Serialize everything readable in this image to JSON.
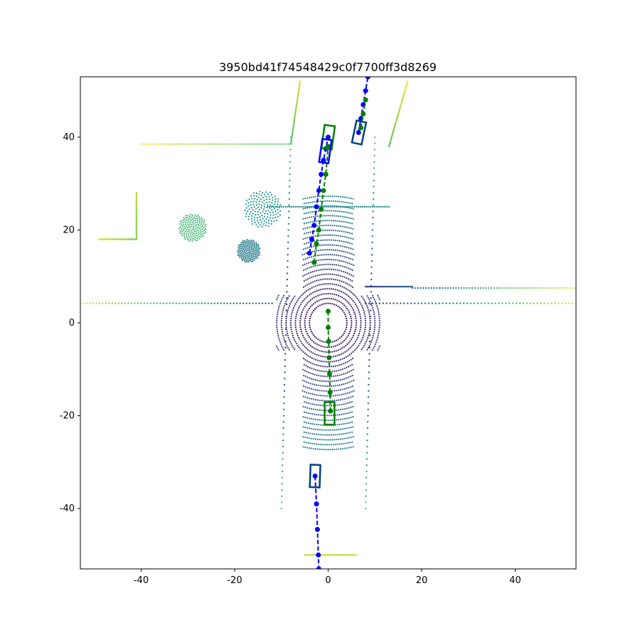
{
  "chart_data": {
    "type": "scatter",
    "title": "3950bd41f74548429c0f7700ff3d8269",
    "xlabel": "",
    "ylabel": "",
    "xlim": [
      -53,
      53
    ],
    "ylim": [
      -53,
      53
    ],
    "x_ticks": [
      -40,
      -20,
      0,
      20,
      40
    ],
    "y_ticks": [
      -40,
      -20,
      0,
      20,
      40
    ],
    "grid": false,
    "colors": {
      "near_points": "#440154",
      "mid_points": "#31688e",
      "far_mid_points": "#35b779",
      "far_points": "#fde725",
      "prediction": "#0000ff",
      "ground_truth": "#008000",
      "box_overlap": "#003f7f"
    },
    "point_cloud": {
      "colormap": "viridis",
      "rings_center": [
        0,
        0
      ],
      "ring_radii": [
        4,
        5,
        6,
        7,
        8,
        9,
        10,
        11,
        12,
        13,
        14,
        15,
        16,
        17,
        18,
        19,
        20,
        21,
        22,
        23,
        24,
        25,
        26
      ],
      "segments": [
        {
          "x": [
            -53,
            -12
          ],
          "y": [
            4.2,
            4.2
          ]
        },
        {
          "x": [
            8,
            53
          ],
          "y": [
            4.2,
            4.2
          ]
        },
        {
          "x": [
            -13,
            13
          ],
          "y": [
            25,
            25
          ]
        },
        {
          "x": [
            -10,
            -8
          ],
          "y": [
            -40,
            40
          ]
        },
        {
          "x": [
            8,
            10
          ],
          "y": [
            -40,
            40
          ]
        },
        {
          "x": [
            -40,
            -8
          ],
          "y": [
            38.5,
            38.5
          ]
        },
        {
          "x": [
            -8,
            -6
          ],
          "y": [
            38.5,
            52
          ]
        },
        {
          "x": [
            -41,
            -41
          ],
          "y": [
            18,
            28
          ]
        },
        {
          "x": [
            -49,
            -41
          ],
          "y": [
            18,
            18
          ]
        },
        {
          "x": [
            8,
            18
          ],
          "y": [
            7.8,
            7.8
          ]
        },
        {
          "x": [
            18,
            53
          ],
          "y": [
            7.5,
            7.5
          ]
        },
        {
          "x": [
            -5,
            6
          ],
          "y": [
            -50,
            -50
          ]
        },
        {
          "x": [
            13,
            17
          ],
          "y": [
            38,
            52
          ]
        }
      ],
      "clusters": [
        {
          "x": -14,
          "y": 24.5,
          "r": 4
        },
        {
          "x": -29,
          "y": 20.5,
          "r": 3
        },
        {
          "x": -17,
          "y": 15.5,
          "r": 2.5
        }
      ]
    },
    "series": [
      {
        "type": "trajectory",
        "color": "#0000ff",
        "x": [
          -4,
          -3.5,
          -3,
          -2.5,
          -2,
          -1.5,
          -1,
          -0.5,
          0
        ],
        "y": [
          15,
          18,
          21,
          25,
          28.5,
          32,
          35,
          37.5,
          40
        ]
      },
      {
        "type": "trajectory",
        "color": "#008000",
        "x": [
          -3,
          -2.5,
          -2,
          -1.5,
          -1,
          -0.5,
          0
        ],
        "y": [
          13,
          17,
          20,
          24.5,
          28.5,
          32,
          38
        ]
      },
      {
        "type": "trajectory",
        "color": "#0000ff",
        "x": [
          6.5,
          7,
          7.5,
          8,
          8.5
        ],
        "y": [
          41,
          44,
          47,
          50,
          53
        ]
      },
      {
        "type": "trajectory",
        "color": "#008000",
        "x": [
          7,
          7.5,
          8
        ],
        "y": [
          42,
          45,
          48
        ]
      },
      {
        "type": "trajectory",
        "color": "#008000",
        "x": [
          0,
          0,
          0.1,
          0.2,
          0.3,
          0.4,
          0.5
        ],
        "y": [
          2.5,
          -1,
          -4,
          -7.5,
          -11,
          -15,
          -19
        ]
      },
      {
        "type": "trajectory",
        "color": "#0000ff",
        "x": [
          -2.8,
          -2.5,
          -2.3,
          -2.1,
          -2
        ],
        "y": [
          -33,
          -39,
          -44.5,
          -50,
          -53
        ]
      }
    ],
    "boxes": [
      {
        "color": "#008000",
        "cx": 0,
        "cy": 40,
        "w": 2.2,
        "h": 5,
        "angle": 8
      },
      {
        "color": "#0000ff",
        "cx": -0.6,
        "cy": 37,
        "w": 2,
        "h": 5,
        "angle": 8
      },
      {
        "color": "#003f7f",
        "cx": 6.6,
        "cy": 41,
        "w": 2.1,
        "h": 4.8,
        "angle": 12
      },
      {
        "color": "#008000",
        "cx": 0.3,
        "cy": -19.5,
        "w": 2.1,
        "h": 4.8,
        "angle": 0
      },
      {
        "color": "#003f7f",
        "cx": -2.8,
        "cy": -33,
        "w": 2.1,
        "h": 4.8,
        "angle": 2
      }
    ]
  }
}
